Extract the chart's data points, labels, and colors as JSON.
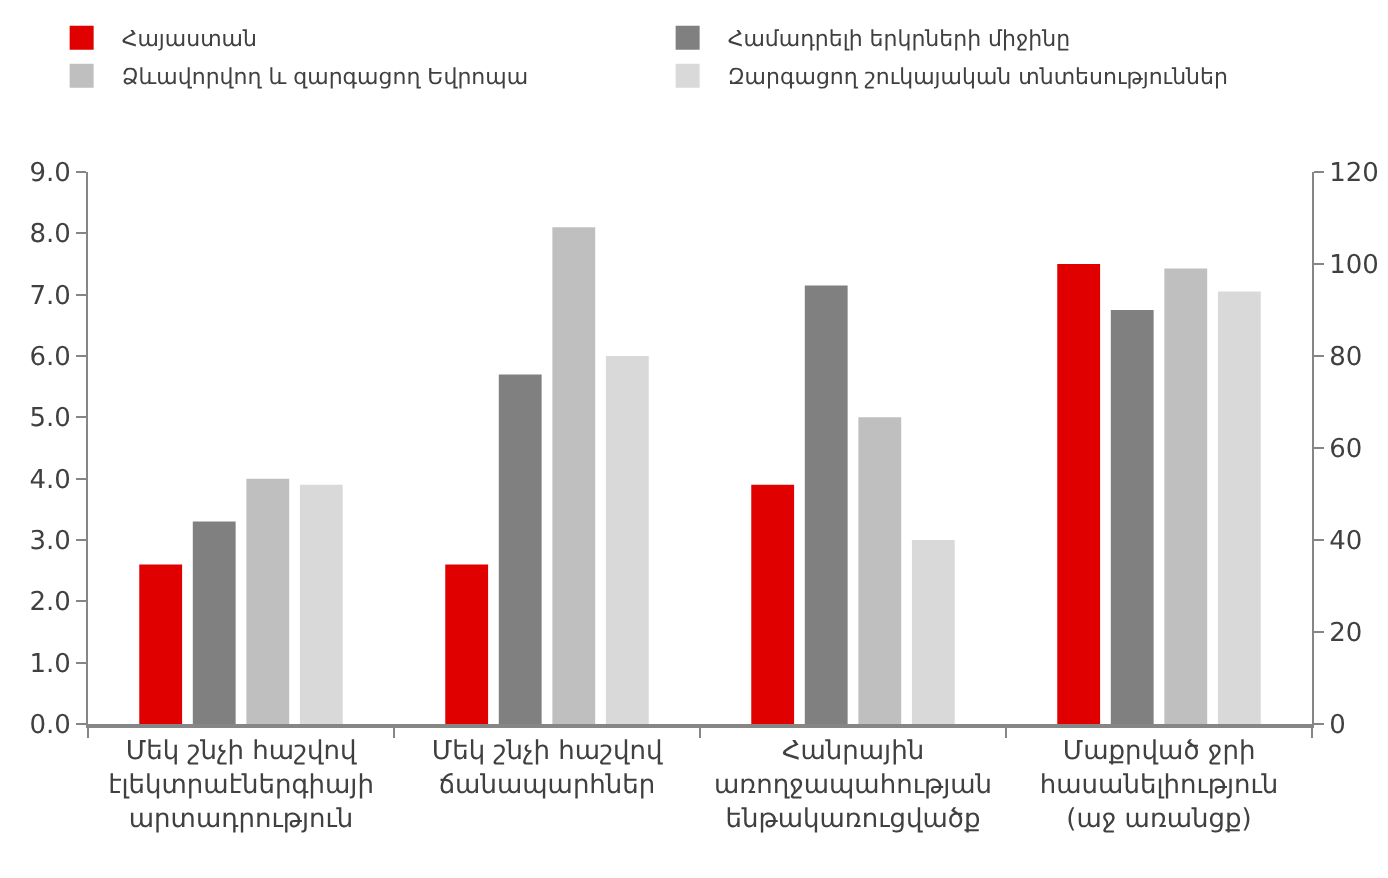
{
  "chart_data": {
    "type": "bar",
    "categories": [
      "Մեկ շնչի հաշվով\nէլեկտրաէներգիայի\nարտադրություն",
      "Մեկ շնչի հաշվով\nճանապարհներ",
      "Հանրային\nառողջապահության\nենթակառուցվածք",
      "Մաքրված ջրի\nհասանելիություն\n(աջ առանցք)"
    ],
    "series": [
      {
        "name": "Հայաստան",
        "color": "#e00000",
        "values": [
          2.6,
          2.6,
          3.9,
          null
        ]
      },
      {
        "name": "Համադրելի երկրների միջինը",
        "color": "#808080",
        "values": [
          3.3,
          5.7,
          7.15,
          null
        ]
      },
      {
        "name": "Ձևավորվող և զարգացող Եվրոպա",
        "color": "#bfbfbf",
        "values": [
          4.0,
          8.1,
          5.0,
          null
        ]
      },
      {
        "name": "Զարգացող շուկայական տնտեսություններ",
        "color": "#d9d9d9",
        "values": [
          3.9,
          6.0,
          3.0,
          null
        ]
      },
      {
        "axis": "y2",
        "color": "#e00000",
        "values": [
          null,
          null,
          null,
          100
        ]
      },
      {
        "axis": "y2",
        "color": "#808080",
        "values": [
          null,
          null,
          null,
          90
        ]
      },
      {
        "axis": "y2",
        "color": "#bfbfbf",
        "values": [
          null,
          null,
          null,
          99
        ]
      },
      {
        "axis": "y2",
        "color": "#d9d9d9",
        "values": [
          null,
          null,
          null,
          94
        ]
      }
    ],
    "ylim": [
      0,
      9
    ],
    "yticks": [
      {
        "value": 0,
        "label": "0.0"
      },
      {
        "value": 1,
        "label": "1.0"
      },
      {
        "value": 2,
        "label": "2.0"
      },
      {
        "value": 3,
        "label": "3.0"
      },
      {
        "value": 4,
        "label": "4.0"
      },
      {
        "value": 5,
        "label": "5.0"
      },
      {
        "value": 6,
        "label": "6.0"
      },
      {
        "value": 7,
        "label": "7.0"
      },
      {
        "value": 8,
        "label": "8.0"
      },
      {
        "value": 9,
        "label": "9.0"
      }
    ],
    "y2lim": [
      0,
      120
    ],
    "y2ticks": [
      0,
      20,
      40,
      60,
      80,
      100,
      120
    ],
    "grid": false,
    "legend": "top"
  }
}
